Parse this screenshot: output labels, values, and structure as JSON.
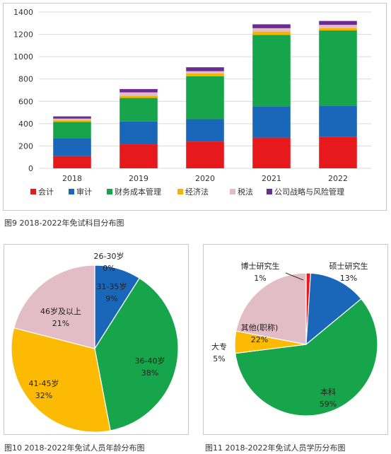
{
  "chart_data": [
    {
      "type": "bar",
      "stacked": true,
      "caption": "图9  2018-2022年免试科目分布图",
      "categories": [
        "2018",
        "2019",
        "2020",
        "2021",
        "2022"
      ],
      "ylim": [
        0,
        1400
      ],
      "yticks": [
        0,
        200,
        400,
        600,
        800,
        1000,
        1200,
        1400
      ],
      "grid": true,
      "legend_position": "bottom",
      "series": [
        {
          "name": "会计",
          "color": "#e8191c",
          "values": [
            110,
            215,
            240,
            275,
            280
          ]
        },
        {
          "name": "审计",
          "color": "#1a66b8",
          "values": [
            160,
            205,
            200,
            280,
            280
          ]
        },
        {
          "name": "财务成本管理",
          "color": "#16a54a",
          "values": [
            145,
            210,
            385,
            640,
            675
          ]
        },
        {
          "name": "经济法",
          "color": "#f4b400",
          "values": [
            15,
            20,
            25,
            30,
            20
          ]
        },
        {
          "name": "税法",
          "color": "#e2bcc6",
          "values": [
            15,
            30,
            20,
            30,
            30
          ]
        },
        {
          "name": "公司战略与风险管理",
          "color": "#6a2c91",
          "values": [
            20,
            30,
            35,
            35,
            35
          ]
        }
      ]
    },
    {
      "type": "pie",
      "caption": "图10  2018-2022年免试人员年龄分布图",
      "slices": [
        {
          "label": "26-30岁",
          "pct": "0%",
          "value": 0,
          "color": "#e8191c"
        },
        {
          "label": "31-35岁",
          "pct": "9%",
          "value": 9,
          "color": "#1a66b8"
        },
        {
          "label": "36-40岁",
          "pct": "38%",
          "value": 38,
          "color": "#16a54a"
        },
        {
          "label": "41-45岁",
          "pct": "32%",
          "value": 32,
          "color": "#fcba03"
        },
        {
          "label": "46岁及以上",
          "pct": "21%",
          "value": 21,
          "color": "#e2bcc6"
        }
      ]
    },
    {
      "type": "pie",
      "caption": "图11  2018-2022年免试人员学历分布图",
      "slices": [
        {
          "label": "博士研究生",
          "pct": "1%",
          "value": 1,
          "color": "#e8191c"
        },
        {
          "label": "硕士研究生",
          "pct": "13%",
          "value": 13,
          "color": "#1a66b8"
        },
        {
          "label": "本科",
          "pct": "59%",
          "value": 59,
          "color": "#16a54a"
        },
        {
          "label": "大专",
          "pct": "5%",
          "value": 5,
          "color": "#fcba03"
        },
        {
          "label": "其他(职称)",
          "pct": "22%",
          "value": 22,
          "color": "#e2bcc6"
        }
      ]
    }
  ]
}
